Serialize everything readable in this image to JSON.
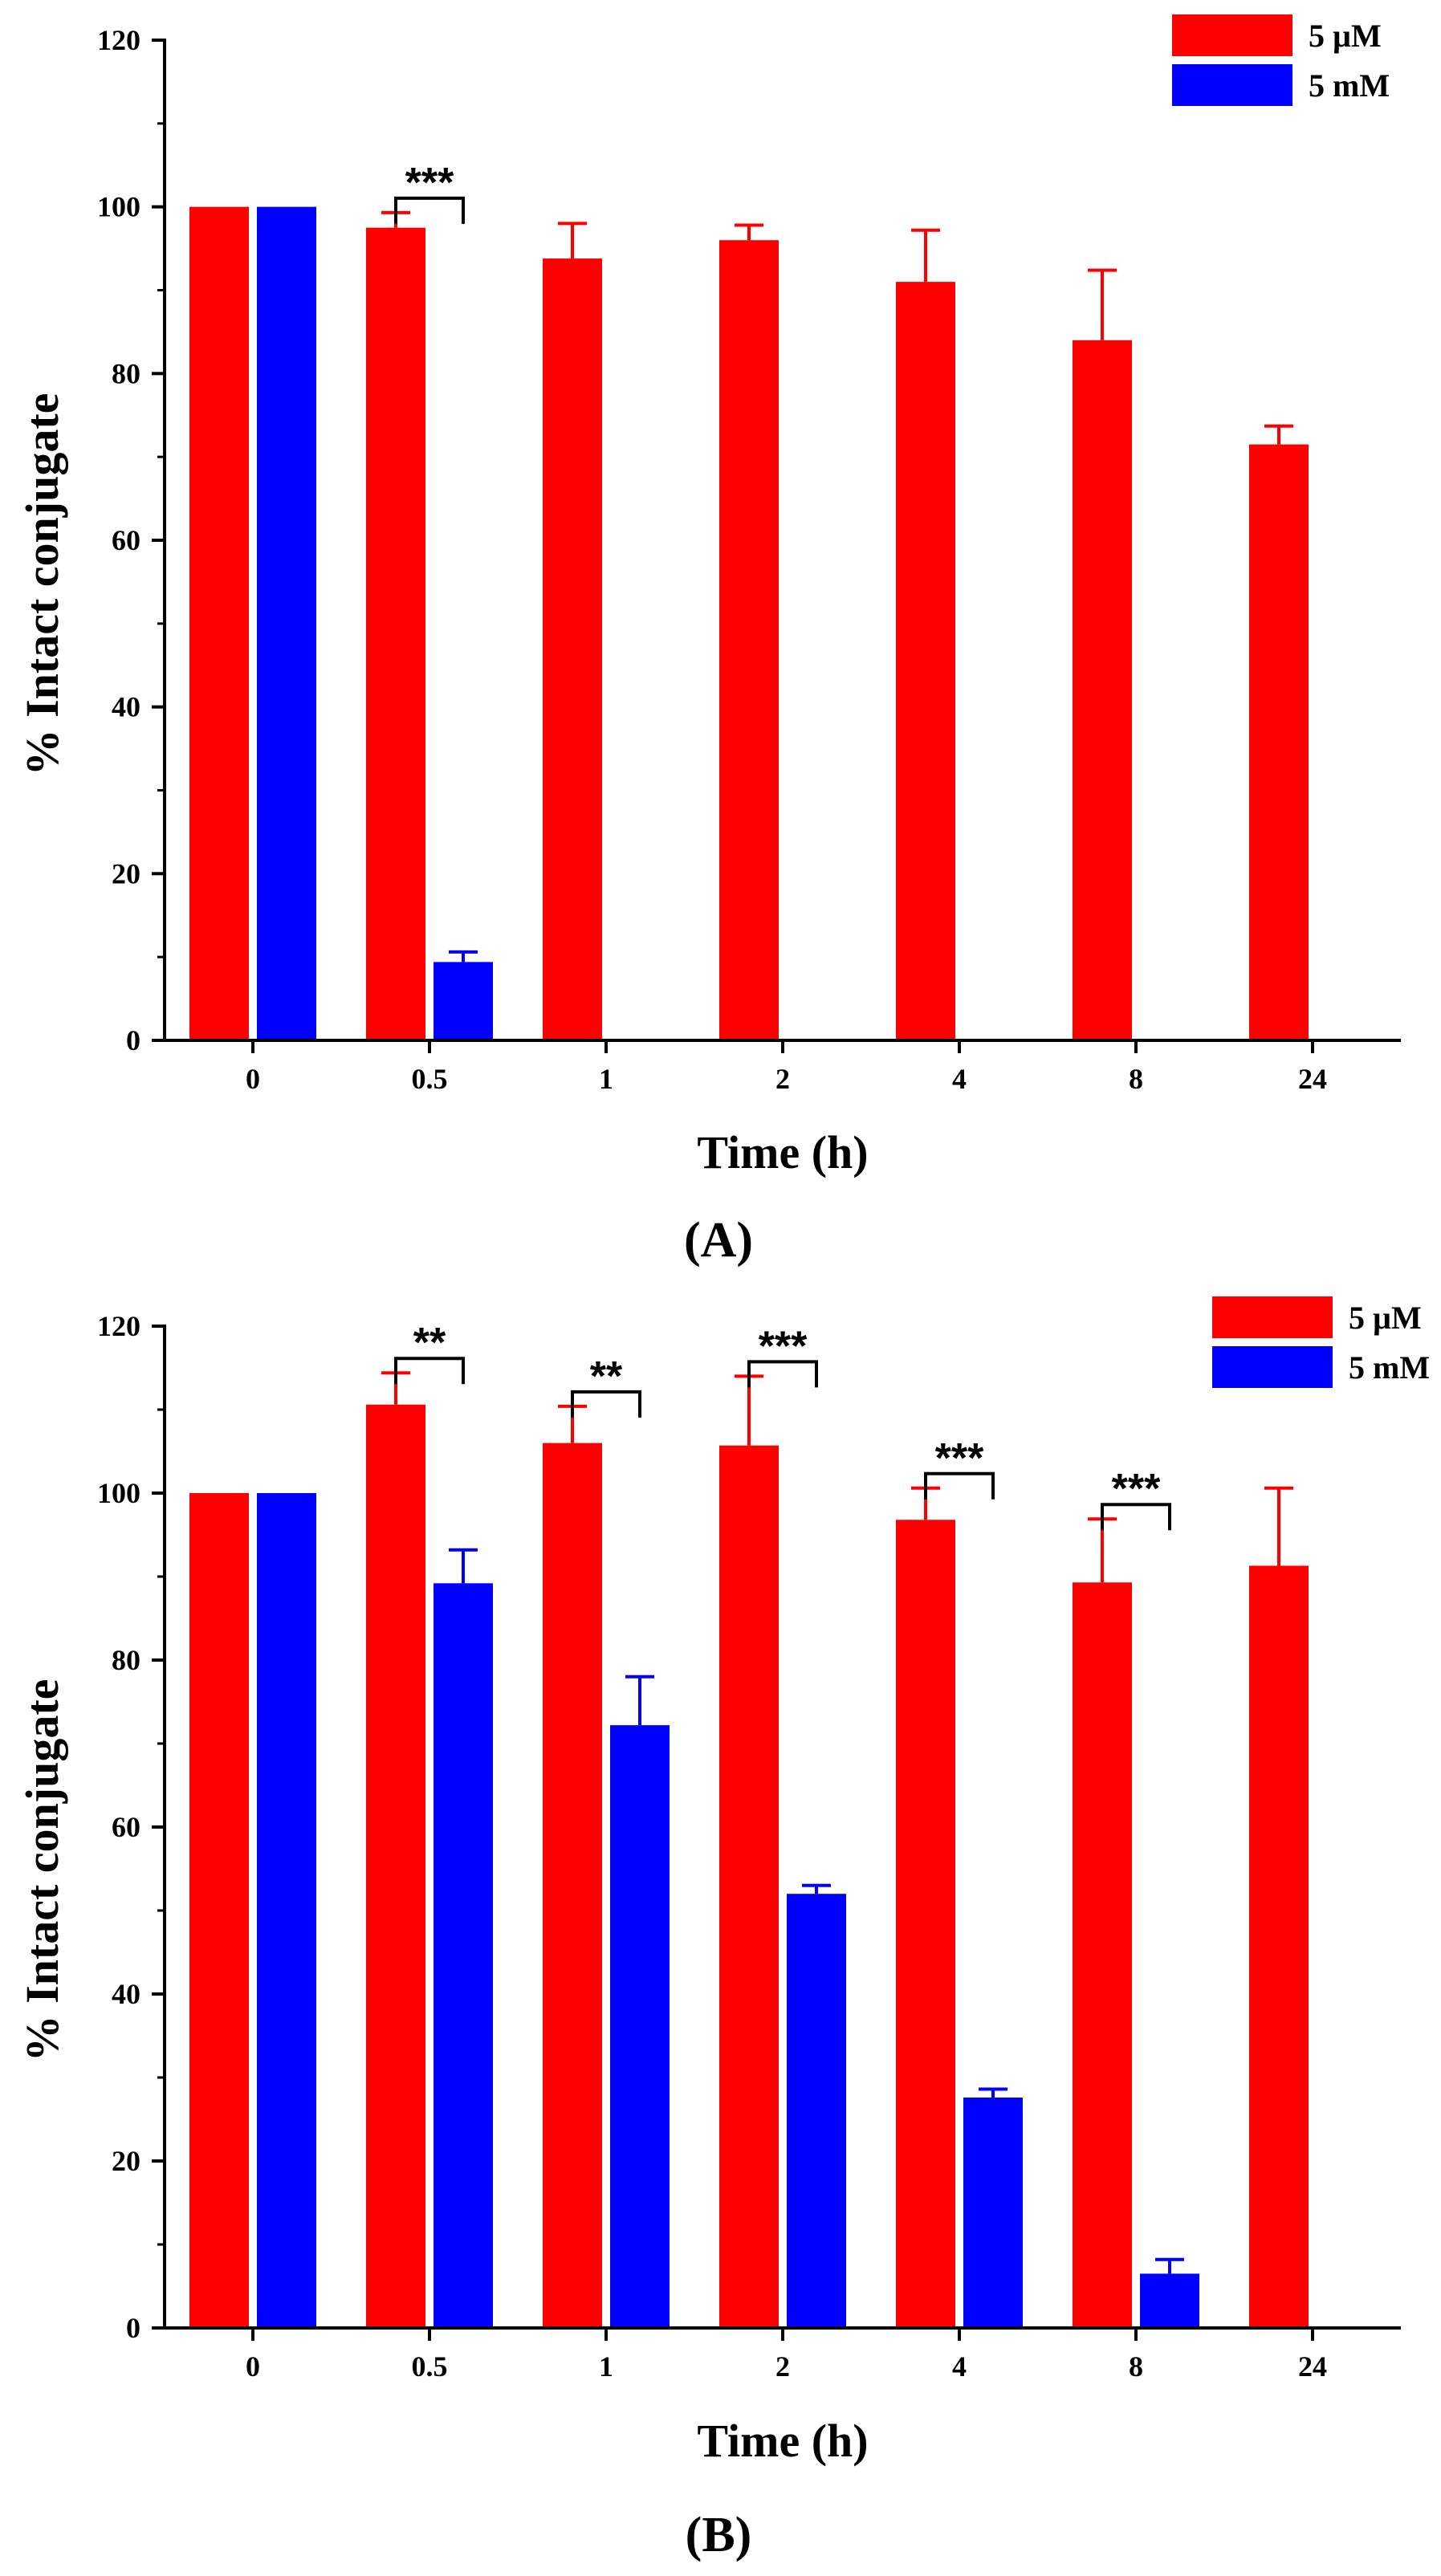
{
  "colors": {
    "series_5uM": "#ff0000",
    "series_5mM": "#0000ff",
    "axis": "#000000"
  },
  "chart_data": [
    {
      "type": "bar",
      "panel": "(A)",
      "xlabel": "Time (h)",
      "ylabel": "% Intact conjugate",
      "ylim": [
        0,
        120
      ],
      "yticks": [
        "0",
        "20",
        "40",
        "60",
        "80",
        "100",
        "120"
      ],
      "categories": [
        "0",
        "0.5",
        "1",
        "2",
        "4",
        "8",
        "24"
      ],
      "legend": {
        "position": "top-right",
        "entries": [
          "5 µM",
          "5 mM"
        ]
      },
      "series": [
        {
          "name": "5 µM",
          "values": [
            100,
            97.5,
            93.8,
            96,
            91,
            84,
            71.5
          ],
          "errors": [
            0,
            1.8,
            4.2,
            1.8,
            6.2,
            8.4,
            2.2
          ]
        },
        {
          "name": "5 mM",
          "values": [
            100,
            9.4,
            null,
            null,
            null,
            null,
            null
          ],
          "errors": [
            0,
            1.2,
            null,
            null,
            null,
            null,
            null
          ]
        }
      ],
      "significance": [
        {
          "category": "0.5",
          "label": "***"
        }
      ]
    },
    {
      "type": "bar",
      "panel": "(B)",
      "xlabel": "Time (h)",
      "ylabel": "% Intact conjugate",
      "ylim": [
        0,
        120
      ],
      "yticks": [
        "0",
        "20",
        "40",
        "60",
        "80",
        "100",
        "120"
      ],
      "categories": [
        "0",
        "0.5",
        "1",
        "2",
        "4",
        "8",
        "24"
      ],
      "legend": {
        "position": "top-right",
        "entries": [
          "5 µM",
          "5 mM"
        ]
      },
      "series": [
        {
          "name": "5 µM",
          "values": [
            100,
            110.6,
            106,
            105.7,
            96.8,
            89.3,
            91.3
          ],
          "errors": [
            0,
            3.8,
            4.4,
            8.3,
            3.8,
            7.6,
            9.3
          ]
        },
        {
          "name": "5 mM",
          "values": [
            100,
            89.2,
            72.2,
            52,
            27.6,
            6.5,
            null
          ],
          "errors": [
            0,
            4,
            5.8,
            1,
            1,
            1.7,
            null
          ]
        }
      ],
      "significance": [
        {
          "category": "0.5",
          "label": "**"
        },
        {
          "category": "1",
          "label": "**"
        },
        {
          "category": "2",
          "label": "***"
        },
        {
          "category": "4",
          "label": "***"
        },
        {
          "category": "8",
          "label": "***"
        }
      ]
    }
  ]
}
